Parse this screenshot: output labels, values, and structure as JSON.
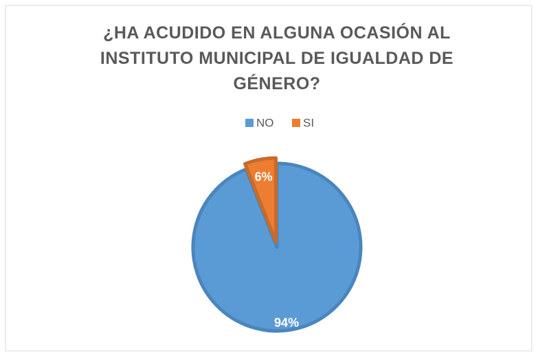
{
  "chart_data": {
    "type": "pie",
    "title": "¿HA ACUDIDO EN ALGUNA OCASIÓN AL INSTITUTO MUNICIPAL DE IGUALDAD DE GÉNERO?",
    "categories": [
      "NO",
      "SI"
    ],
    "values": [
      94,
      6
    ],
    "value_labels": [
      "94%",
      "6%"
    ],
    "colors": [
      "#5b9bd5",
      "#ed7d31"
    ],
    "legend": "top"
  }
}
